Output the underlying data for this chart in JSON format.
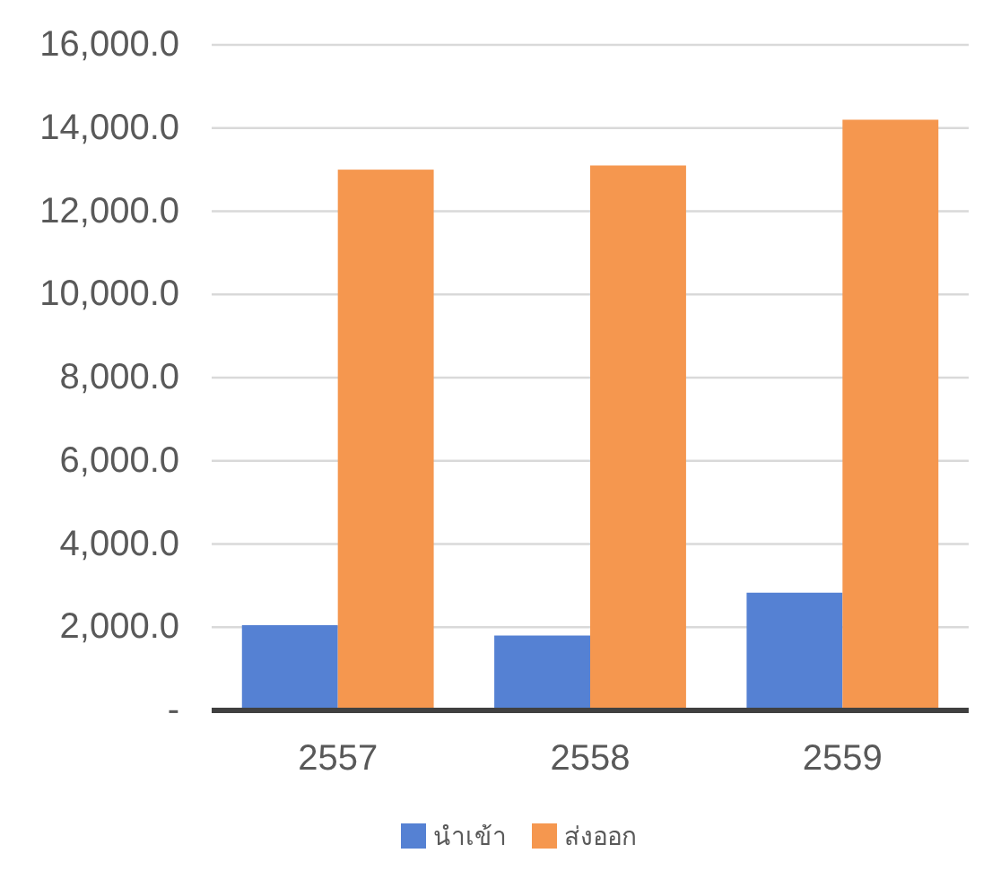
{
  "chart_data": {
    "type": "bar",
    "categories": [
      "2557",
      "2558",
      "2559"
    ],
    "series": [
      {
        "name": "นำเข้า",
        "color": "#5581d3",
        "values": [
          2050,
          1800,
          2830
        ]
      },
      {
        "name": "ส่งออก",
        "color": "#f5974f",
        "values": [
          13000,
          13100,
          14200
        ]
      }
    ],
    "ylim": [
      0,
      16000
    ],
    "yticks": [
      {
        "value": 0,
        "label": "-"
      },
      {
        "value": 2000,
        "label": "2,000.0"
      },
      {
        "value": 4000,
        "label": "4,000.0"
      },
      {
        "value": 6000,
        "label": "6,000.0"
      },
      {
        "value": 8000,
        "label": "8,000.0"
      },
      {
        "value": 10000,
        "label": "10,000.0"
      },
      {
        "value": 12000,
        "label": "12,000.0"
      },
      {
        "value": 14000,
        "label": "14,000.0"
      },
      {
        "value": 16000,
        "label": "16,000.0"
      }
    ],
    "grid": "y",
    "legend": "bottom"
  }
}
